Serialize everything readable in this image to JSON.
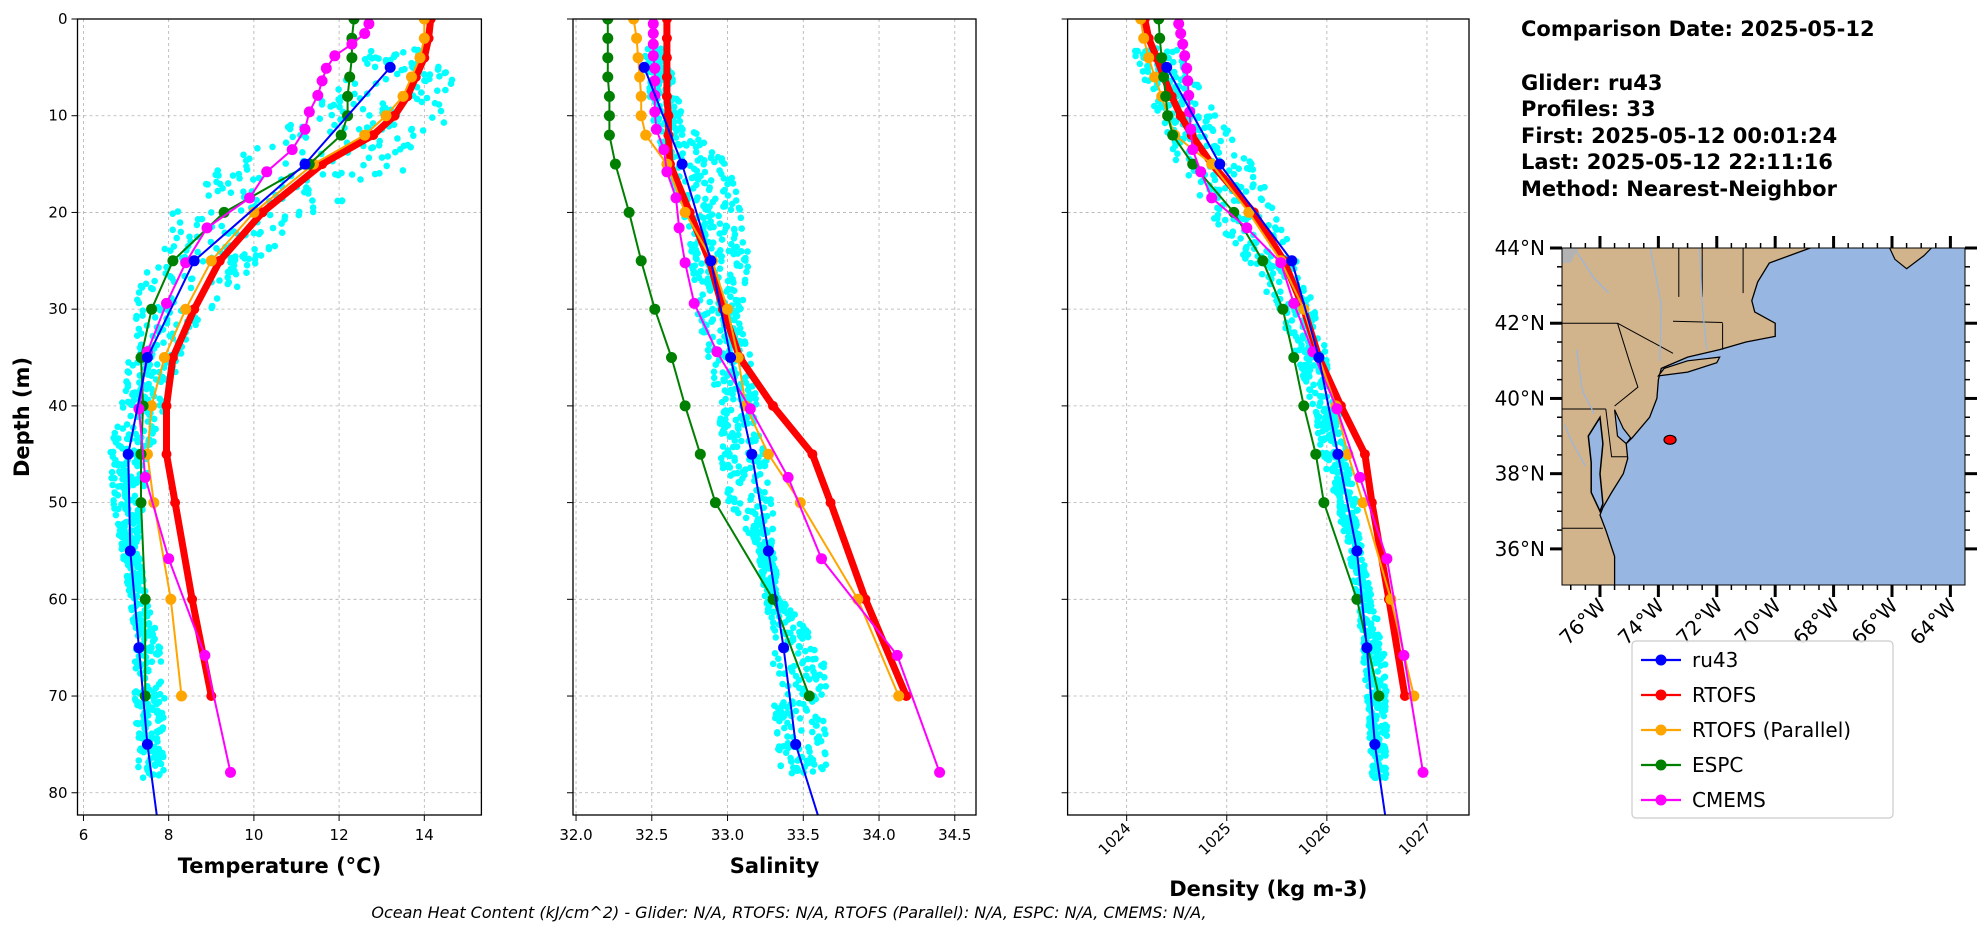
{
  "colors": {
    "ru43": "#0000ff",
    "RTOFS": "#ff0000",
    "RTOFS (Parallel)": "#ffa500",
    "ESPC": "#008000",
    "CMEMS": "#ff00ff",
    "glider_scatter": "#00ffff",
    "ocean": "#97b6e1",
    "land": "#d2b48c"
  },
  "info": {
    "comparison_date": "Comparison Date: 2025-05-12",
    "glider": "Glider: ru43",
    "profiles": "Profiles: 33",
    "first": "First: 2025-05-12 00:01:24",
    "last": "Last: 2025-05-12 22:11:16",
    "method": "Method: Nearest-Neighbor"
  },
  "legend": [
    "ru43",
    "RTOFS",
    "RTOFS (Parallel)",
    "ESPC",
    "CMEMS"
  ],
  "footer": "Ocean Heat Content (kJ/cm^2) - Glider: N/A,  RTOFS: N/A,  RTOFS (Parallel): N/A,  ESPC: N/A,  CMEMS: N/A,",
  "map": {
    "lat_ticks": [
      "36°N",
      "38°N",
      "40°N",
      "42°N",
      "44°N"
    ],
    "lat_values": [
      36,
      38,
      40,
      42,
      44
    ],
    "lon_ticks": [
      "76°W",
      "74°W",
      "72°W",
      "70°W",
      "68°W",
      "66°W",
      "64°W"
    ],
    "lon_values": [
      -76,
      -74,
      -72,
      -70,
      -68,
      -66,
      -64
    ],
    "extent": {
      "lon": [
        -77.3,
        -63.5
      ],
      "lat": [
        35.04,
        44.0
      ]
    },
    "glider_position": {
      "lon": -73.6,
      "lat": 38.9
    }
  },
  "chart_data": [
    {
      "type": "line",
      "xlabel": "Temperature (°C)",
      "ylabel": "Depth (m)",
      "xlim": [
        5.86,
        15.34
      ],
      "ylim": [
        82.3,
        0
      ],
      "grid": true,
      "xticks": [
        6,
        8,
        10,
        12,
        14
      ],
      "xtick_labels": [
        "6",
        "8",
        "10",
        "12",
        "14"
      ],
      "yticks": [
        0,
        10,
        20,
        30,
        40,
        50,
        60,
        70,
        80
      ],
      "ytick_labels": [
        "0",
        "10",
        "20",
        "30",
        "40",
        "50",
        "60",
        "70",
        "80"
      ],
      "glider_scatter": {
        "depth": [
          3,
          5,
          10,
          12,
          15,
          18,
          20,
          22,
          25,
          28,
          30,
          33,
          40,
          45,
          50,
          55,
          60,
          65,
          70,
          78.5
        ],
        "min": [
          12.8,
          12.3,
          11.2,
          10.5,
          9.3,
          8.5,
          8.1,
          7.9,
          7.6,
          7.3,
          7.2,
          7.1,
          6.9,
          6.6,
          6.7,
          6.9,
          7.1,
          7.2,
          7.2,
          7.3
        ],
        "max": [
          14.9,
          14.7,
          14.6,
          14.4,
          13.8,
          12.5,
          11.7,
          10.8,
          10.2,
          9.6,
          9.0,
          8.5,
          7.9,
          7.6,
          7.4,
          7.3,
          7.5,
          7.8,
          7.9,
          7.9
        ]
      },
      "series": [
        {
          "name": "RTOFS",
          "depth": [
            0,
            2,
            4,
            6,
            8,
            10,
            12,
            15,
            20,
            25,
            30,
            35,
            40,
            45,
            50,
            60,
            70
          ],
          "values": [
            14.15,
            14.1,
            14.0,
            13.8,
            13.6,
            13.3,
            12.8,
            11.6,
            10.2,
            9.2,
            8.6,
            8.1,
            7.95,
            7.95,
            8.15,
            8.55,
            9.0
          ]
        },
        {
          "name": "RTOFS (Parallel)",
          "depth": [
            0,
            2,
            4,
            6,
            8,
            10,
            12,
            15,
            20,
            25,
            30,
            35,
            40,
            45,
            50,
            60,
            70
          ],
          "values": [
            14.0,
            14.0,
            13.9,
            13.7,
            13.5,
            13.1,
            12.6,
            11.4,
            10.0,
            9.0,
            8.4,
            7.9,
            7.6,
            7.5,
            7.65,
            8.05,
            8.3
          ]
        },
        {
          "name": "ESPC",
          "depth": [
            0,
            2,
            4,
            6,
            8,
            10,
            12,
            15,
            20,
            25,
            30,
            35,
            40,
            45,
            50,
            60,
            70
          ],
          "values": [
            12.35,
            12.3,
            12.3,
            12.25,
            12.2,
            12.2,
            12.05,
            11.3,
            9.3,
            8.1,
            7.6,
            7.35,
            7.4,
            7.35,
            7.35,
            7.45,
            7.45
          ]
        },
        {
          "name": "CMEMS",
          "depth": [
            0.5,
            1.5,
            2.6,
            3.8,
            5.1,
            6.4,
            7.9,
            9.6,
            11.4,
            13.5,
            15.8,
            18.5,
            21.6,
            25.2,
            29.4,
            34.4,
            40.3,
            47.4,
            55.8,
            65.8,
            77.9
          ],
          "values": [
            12.7,
            12.6,
            12.3,
            11.9,
            11.7,
            11.6,
            11.5,
            11.3,
            11.2,
            10.9,
            10.3,
            9.9,
            8.9,
            8.4,
            7.95,
            7.5,
            7.3,
            7.45,
            8.0,
            8.85,
            9.45
          ]
        },
        {
          "name": "ru43",
          "depth": [
            5,
            15,
            25,
            35,
            45,
            55,
            65,
            75,
            85
          ],
          "values": [
            13.2,
            11.2,
            8.6,
            7.5,
            7.05,
            7.1,
            7.3,
            7.5,
            7.8
          ]
        }
      ]
    },
    {
      "type": "line",
      "xlabel": "Salinity",
      "ylabel": "",
      "xlim": [
        31.98,
        34.64
      ],
      "ylim": [
        82.3,
        0
      ],
      "grid": true,
      "xticks": [
        32.0,
        32.5,
        33.0,
        33.5,
        34.0,
        34.5
      ],
      "xtick_labels": [
        "32.0",
        "32.5",
        "33.0",
        "33.5",
        "34.0",
        "34.5"
      ],
      "yticks": [
        0,
        10,
        20,
        30,
        40,
        50,
        60,
        70,
        80
      ],
      "ytick_labels": [],
      "glider_scatter": {
        "depth": [
          3,
          10,
          15,
          20,
          25,
          30,
          35,
          40,
          45,
          50,
          55,
          60,
          65,
          70,
          78.5
        ],
        "min": [
          32.45,
          32.5,
          32.6,
          32.7,
          32.75,
          32.8,
          32.85,
          32.95,
          32.95,
          33.0,
          33.2,
          33.25,
          33.3,
          33.3,
          33.35
        ],
        "max": [
          32.6,
          32.7,
          33.0,
          33.1,
          33.15,
          33.1,
          33.15,
          33.2,
          33.25,
          33.3,
          33.3,
          33.35,
          33.65,
          33.65,
          33.65
        ]
      },
      "series": [
        {
          "name": "RTOFS",
          "depth": [
            0,
            2,
            4,
            6,
            8,
            10,
            12,
            15,
            20,
            25,
            30,
            35,
            40,
            45,
            50,
            60,
            70
          ],
          "values": [
            32.6,
            32.6,
            32.6,
            32.6,
            32.6,
            32.61,
            32.61,
            32.62,
            32.75,
            32.88,
            32.97,
            33.08,
            33.3,
            33.56,
            33.68,
            33.91,
            34.18
          ]
        },
        {
          "name": "RTOFS (Parallel)",
          "depth": [
            0,
            2,
            4,
            6,
            8,
            10,
            12,
            15,
            20,
            25,
            30,
            35,
            40,
            45,
            50,
            60,
            70
          ],
          "values": [
            32.38,
            32.4,
            32.41,
            32.42,
            32.43,
            32.43,
            32.46,
            32.6,
            32.72,
            32.9,
            33.0,
            33.07,
            33.12,
            33.27,
            33.48,
            33.86,
            34.13
          ]
        },
        {
          "name": "ESPC",
          "depth": [
            0,
            2,
            4,
            6,
            8,
            10,
            12,
            15,
            20,
            25,
            30,
            35,
            40,
            45,
            50,
            60,
            70
          ],
          "values": [
            32.21,
            32.21,
            32.21,
            32.21,
            32.22,
            32.22,
            32.22,
            32.26,
            32.35,
            32.43,
            32.52,
            32.63,
            32.72,
            32.82,
            32.92,
            33.3,
            33.54
          ]
        },
        {
          "name": "CMEMS",
          "depth": [
            0.5,
            1.5,
            2.6,
            3.8,
            5.1,
            6.4,
            7.9,
            9.6,
            11.4,
            13.5,
            15.8,
            18.5,
            21.6,
            25.2,
            29.4,
            34.4,
            40.3,
            47.4,
            55.8,
            65.8,
            77.9
          ],
          "values": [
            32.51,
            32.51,
            32.51,
            32.51,
            32.52,
            32.52,
            32.52,
            32.52,
            32.53,
            32.58,
            32.6,
            32.66,
            32.68,
            32.72,
            32.78,
            32.93,
            33.15,
            33.4,
            33.62,
            34.12,
            34.4
          ]
        },
        {
          "name": "ru43",
          "depth": [
            5,
            15,
            25,
            35,
            45,
            55,
            65,
            75,
            85
          ],
          "values": [
            32.45,
            32.7,
            32.89,
            33.02,
            33.16,
            33.27,
            33.37,
            33.45,
            33.65
          ]
        }
      ]
    },
    {
      "type": "line",
      "xlabel": "Density (kg m-3)",
      "ylabel": "",
      "xlim": [
        1023.41,
        1027.42
      ],
      "ylim": [
        82.3,
        0
      ],
      "grid": true,
      "xticks": [
        1024,
        1025,
        1026,
        1027
      ],
      "xtick_labels": [
        "1024",
        "1025",
        "1026",
        "1027"
      ],
      "yticks": [
        0,
        10,
        20,
        30,
        40,
        50,
        60,
        70,
        80
      ],
      "ytick_labels": [],
      "glider_scatter": {
        "depth": [
          3,
          10,
          15,
          20,
          25,
          30,
          35,
          40,
          45,
          50,
          55,
          60,
          65,
          70,
          78.5
        ],
        "min": [
          1024.05,
          1024.3,
          1024.5,
          1024.8,
          1025.2,
          1025.5,
          1025.7,
          1025.85,
          1025.95,
          1026.1,
          1026.2,
          1026.3,
          1026.35,
          1026.4,
          1026.45
        ],
        "max": [
          1024.5,
          1024.9,
          1025.3,
          1025.5,
          1025.7,
          1025.9,
          1026.0,
          1026.1,
          1026.2,
          1026.3,
          1026.35,
          1026.45,
          1026.6,
          1026.6,
          1026.6
        ]
      },
      "series": [
        {
          "name": "RTOFS",
          "depth": [
            0,
            2,
            4,
            6,
            8,
            10,
            12,
            15,
            20,
            25,
            30,
            35,
            40,
            45,
            50,
            60,
            70
          ],
          "values": [
            1024.18,
            1024.22,
            1024.3,
            1024.37,
            1024.45,
            1024.54,
            1024.65,
            1024.85,
            1025.27,
            1025.57,
            1025.77,
            1025.92,
            1026.14,
            1026.38,
            1026.45,
            1026.62,
            1026.78
          ]
        },
        {
          "name": "RTOFS (Parallel)",
          "depth": [
            0,
            2,
            4,
            6,
            8,
            10,
            12,
            15,
            20,
            25,
            30,
            35,
            40,
            45,
            50,
            60,
            70
          ],
          "values": [
            1024.14,
            1024.17,
            1024.22,
            1024.28,
            1024.35,
            1024.41,
            1024.48,
            1024.85,
            1025.22,
            1025.54,
            1025.77,
            1025.92,
            1026.09,
            1026.21,
            1026.36,
            1026.64,
            1026.87
          ]
        },
        {
          "name": "ESPC",
          "depth": [
            0,
            2,
            4,
            6,
            8,
            10,
            12,
            15,
            20,
            25,
            30,
            35,
            40,
            45,
            50,
            60,
            70
          ],
          "values": [
            1024.32,
            1024.33,
            1024.35,
            1024.37,
            1024.39,
            1024.41,
            1024.46,
            1024.66,
            1025.07,
            1025.36,
            1025.56,
            1025.67,
            1025.77,
            1025.89,
            1025.97,
            1026.3,
            1026.52
          ]
        },
        {
          "name": "CMEMS",
          "depth": [
            0.5,
            1.5,
            2.6,
            3.8,
            5.1,
            6.4,
            7.9,
            9.6,
            11.4,
            13.5,
            15.8,
            18.5,
            21.6,
            25.2,
            29.4,
            34.4,
            40.3,
            47.4,
            55.8,
            65.8,
            77.9
          ],
          "values": [
            1024.52,
            1024.54,
            1024.56,
            1024.58,
            1024.6,
            1024.61,
            1024.62,
            1024.63,
            1024.64,
            1024.66,
            1024.74,
            1024.85,
            1025.2,
            1025.54,
            1025.67,
            1025.86,
            1026.1,
            1026.33,
            1026.6,
            1026.77,
            1026.96
          ]
        },
        {
          "name": "ru43",
          "depth": [
            5,
            15,
            25,
            35,
            45,
            55,
            65,
            75,
            85
          ],
          "values": [
            1024.4,
            1024.93,
            1025.65,
            1025.92,
            1026.11,
            1026.3,
            1026.4,
            1026.48,
            1026.62
          ]
        }
      ]
    }
  ]
}
